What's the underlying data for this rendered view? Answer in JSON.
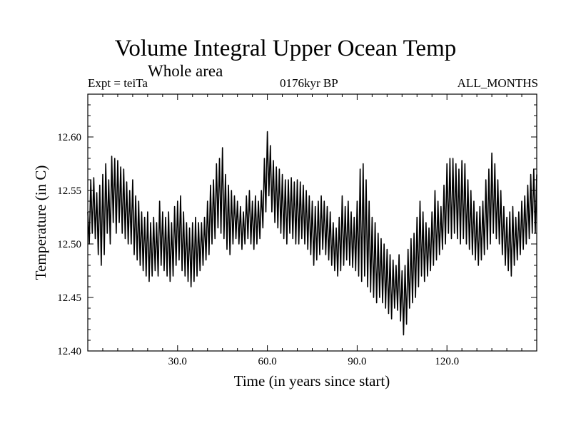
{
  "chart_data": {
    "type": "line",
    "title": "Volume Integral Upper Ocean Temp",
    "subtitle": "Whole area",
    "annotations": {
      "left": "Expt = teiTa",
      "center": "0176kyr BP",
      "right": "ALL_MONTHS"
    },
    "xlabel": "Time (in years since start)",
    "ylabel": "Temperature (in C)",
    "xlim": [
      0,
      150
    ],
    "ylim": [
      12.4,
      12.64
    ],
    "xticks": [
      30,
      60,
      90,
      120
    ],
    "xtick_labels": [
      "30.0",
      "60.0",
      "90.0",
      "120.0"
    ],
    "yticks": [
      12.4,
      12.45,
      12.5,
      12.55,
      12.6
    ],
    "ytick_labels": [
      "12.40",
      "12.45",
      "12.50",
      "12.55",
      "12.60"
    ],
    "grid": false,
    "series": [
      {
        "name": "Volume Integral Upper Ocean Temp",
        "color": "#000000",
        "sampling": "annual max/min envelope (monthly series), approx.",
        "x": [
          0,
          1,
          2,
          3,
          4,
          5,
          6,
          7,
          8,
          9,
          10,
          11,
          12,
          13,
          14,
          15,
          16,
          17,
          18,
          19,
          20,
          21,
          22,
          23,
          24,
          25,
          26,
          27,
          28,
          29,
          30,
          31,
          32,
          33,
          34,
          35,
          36,
          37,
          38,
          39,
          40,
          41,
          42,
          43,
          44,
          45,
          46,
          47,
          48,
          49,
          50,
          51,
          52,
          53,
          54,
          55,
          56,
          57,
          58,
          59,
          60,
          61,
          62,
          63,
          64,
          65,
          66,
          67,
          68,
          69,
          70,
          71,
          72,
          73,
          74,
          75,
          76,
          77,
          78,
          79,
          80,
          81,
          82,
          83,
          84,
          85,
          86,
          87,
          88,
          89,
          90,
          91,
          92,
          93,
          94,
          95,
          96,
          97,
          98,
          99,
          100,
          101,
          102,
          103,
          104,
          105,
          106,
          107,
          108,
          109,
          110,
          111,
          112,
          113,
          114,
          115,
          116,
          117,
          118,
          119,
          120,
          121,
          122,
          123,
          124,
          125,
          126,
          127,
          128,
          129,
          130,
          131,
          132,
          133,
          134,
          135,
          136,
          137,
          138,
          139,
          140,
          141,
          142,
          143,
          144,
          145,
          146,
          147,
          148,
          149,
          150
        ],
        "max": [
          12.53,
          12.56,
          12.562,
          12.548,
          12.555,
          12.565,
          12.575,
          12.56,
          12.582,
          12.58,
          12.578,
          12.572,
          12.57,
          12.558,
          12.55,
          12.56,
          12.545,
          12.54,
          12.53,
          12.525,
          12.53,
          12.52,
          12.525,
          12.52,
          12.54,
          12.53,
          12.525,
          12.53,
          12.52,
          12.535,
          12.54,
          12.545,
          12.53,
          12.52,
          12.515,
          12.52,
          12.525,
          12.52,
          12.52,
          12.525,
          12.54,
          12.555,
          12.56,
          12.575,
          12.58,
          12.59,
          12.565,
          12.555,
          12.55,
          12.545,
          12.54,
          12.535,
          12.53,
          12.545,
          12.55,
          12.54,
          12.545,
          12.54,
          12.55,
          12.58,
          12.605,
          12.592,
          12.578,
          12.572,
          12.57,
          12.565,
          12.56,
          12.56,
          12.562,
          12.558,
          12.56,
          12.558,
          12.555,
          12.55,
          12.545,
          12.54,
          12.535,
          12.54,
          12.545,
          12.54,
          12.535,
          12.53,
          12.52,
          12.515,
          12.525,
          12.545,
          12.535,
          12.54,
          12.53,
          12.525,
          12.54,
          12.57,
          12.575,
          12.56,
          12.54,
          12.525,
          12.52,
          12.51,
          12.505,
          12.5,
          12.495,
          12.49,
          12.485,
          12.48,
          12.49,
          12.475,
          12.48,
          12.495,
          12.505,
          12.51,
          12.525,
          12.54,
          12.53,
          12.52,
          12.515,
          12.53,
          12.55,
          12.54,
          12.535,
          12.555,
          12.575,
          12.58,
          12.58,
          12.575,
          12.57,
          12.578,
          12.575,
          12.56,
          12.55,
          12.54,
          12.53,
          12.535,
          12.54,
          12.56,
          12.57,
          12.585,
          12.575,
          12.56,
          12.55,
          12.535,
          12.525,
          12.53,
          12.535,
          12.525,
          12.53,
          12.54,
          12.545,
          12.555,
          12.565,
          12.57,
          12.565
        ],
        "min": [
          12.5,
          12.51,
          12.505,
          12.49,
          12.48,
          12.49,
          12.51,
          12.5,
          12.52,
          12.51,
          12.52,
          12.51,
          12.505,
          12.5,
          12.5,
          12.49,
          12.485,
          12.48,
          12.475,
          12.47,
          12.465,
          12.47,
          12.475,
          12.47,
          12.48,
          12.475,
          12.47,
          12.465,
          12.47,
          12.48,
          12.485,
          12.475,
          12.47,
          12.465,
          12.46,
          12.465,
          12.47,
          12.475,
          12.48,
          12.485,
          12.49,
          12.5,
          12.505,
          12.515,
          12.51,
          12.505,
          12.495,
          12.49,
          12.5,
          12.505,
          12.5,
          12.495,
          12.5,
          12.505,
          12.5,
          12.495,
          12.5,
          12.505,
          12.515,
          12.53,
          12.545,
          12.53,
          12.52,
          12.515,
          12.51,
          12.505,
          12.5,
          12.51,
          12.505,
          12.5,
          12.5,
          12.505,
          12.5,
          12.495,
          12.49,
          12.48,
          12.485,
          12.49,
          12.495,
          12.49,
          12.485,
          12.48,
          12.475,
          12.47,
          12.475,
          12.48,
          12.485,
          12.48,
          12.478,
          12.475,
          12.47,
          12.465,
          12.47,
          12.46,
          12.455,
          12.45,
          12.445,
          12.45,
          12.445,
          12.44,
          12.435,
          12.43,
          12.44,
          12.438,
          12.428,
          12.415,
          12.425,
          12.44,
          12.445,
          12.45,
          12.46,
          12.47,
          12.465,
          12.47,
          12.475,
          12.48,
          12.485,
          12.49,
          12.495,
          12.5,
          12.51,
          12.505,
          12.51,
          12.505,
          12.5,
          12.505,
          12.5,
          12.495,
          12.49,
          12.485,
          12.48,
          12.485,
          12.49,
          12.495,
          12.5,
          12.51,
          12.505,
          12.5,
          12.49,
          12.48,
          12.475,
          12.47,
          12.48,
          12.485,
          12.49,
          12.495,
          12.5,
          12.505,
          12.51,
          12.51,
          12.515
        ]
      }
    ]
  }
}
